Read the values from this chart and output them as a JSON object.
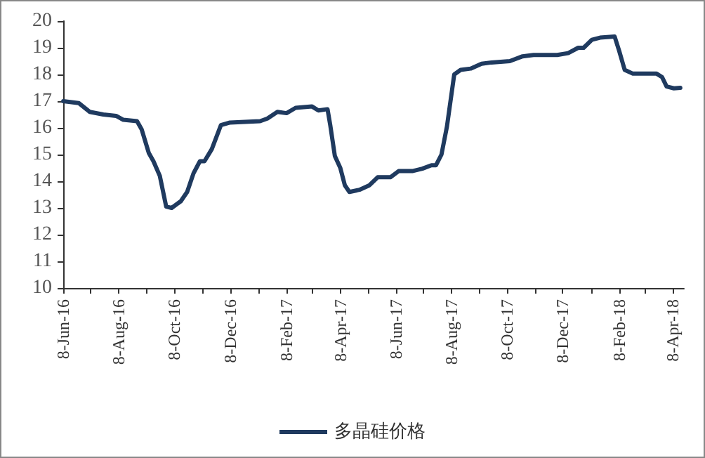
{
  "chart_data": {
    "type": "line",
    "x": [
      "2016-06-08",
      "2016-06-25",
      "2016-07-07",
      "2016-07-22",
      "2016-08-05",
      "2016-08-13",
      "2016-08-28",
      "2016-09-02",
      "2016-09-10",
      "2016-09-15",
      "2016-09-22",
      "2016-09-29",
      "2016-10-05",
      "2016-10-15",
      "2016-10-22",
      "2016-10-29",
      "2016-11-05",
      "2016-11-10",
      "2016-11-18",
      "2016-11-28",
      "2016-12-08",
      "2017-01-10",
      "2017-01-18",
      "2017-01-29",
      "2017-02-08",
      "2017-02-18",
      "2017-03-08",
      "2017-03-15",
      "2017-03-25",
      "2017-03-28",
      "2017-04-02",
      "2017-04-08",
      "2017-04-13",
      "2017-04-18",
      "2017-04-29",
      "2017-05-10",
      "2017-05-19",
      "2017-06-02",
      "2017-06-11",
      "2017-06-26",
      "2017-07-07",
      "2017-07-17",
      "2017-07-22",
      "2017-07-28",
      "2017-08-03",
      "2017-08-11",
      "2017-08-18",
      "2017-08-29",
      "2017-09-10",
      "2017-09-21",
      "2017-10-11",
      "2017-10-25",
      "2017-11-06",
      "2017-12-02",
      "2017-12-14",
      "2017-12-25",
      "2017-12-31",
      "2018-01-09",
      "2018-01-18",
      "2018-02-03",
      "2018-02-08",
      "2018-02-14",
      "2018-02-23",
      "2018-03-21",
      "2018-03-27",
      "2018-04-01",
      "2018-04-09",
      "2018-04-16"
    ],
    "series": [
      {
        "name": "多晶硅价格",
        "color": "#1f3a5f",
        "values": [
          17.0,
          16.93,
          16.6,
          16.5,
          16.45,
          16.3,
          16.25,
          15.95,
          15.05,
          14.75,
          14.2,
          13.05,
          13.0,
          13.25,
          13.6,
          14.3,
          14.75,
          14.75,
          15.2,
          16.1,
          16.2,
          16.25,
          16.35,
          16.6,
          16.55,
          16.75,
          16.8,
          16.65,
          16.7,
          16.1,
          14.95,
          14.5,
          13.85,
          13.6,
          13.68,
          13.85,
          14.15,
          14.15,
          14.38,
          14.38,
          14.47,
          14.6,
          14.6,
          15.0,
          16.05,
          18.0,
          18.17,
          18.22,
          18.4,
          18.45,
          18.5,
          18.68,
          18.73,
          18.73,
          18.8,
          19.0,
          19.0,
          19.3,
          19.38,
          19.42,
          18.88,
          18.17,
          18.03,
          18.03,
          17.9,
          17.55,
          17.48,
          17.5
        ]
      }
    ],
    "xlim": [
      "2016-06-08",
      "2018-04-20"
    ],
    "xticks": [
      {
        "value": "2016-06-08",
        "label": "8-Jun-16"
      },
      {
        "value": "2016-07-08",
        "label": null
      },
      {
        "value": "2016-08-08",
        "label": "8-Aug-16"
      },
      {
        "value": "2016-09-08",
        "label": null
      },
      {
        "value": "2016-10-08",
        "label": "8-Oct-16"
      },
      {
        "value": "2016-11-08",
        "label": null
      },
      {
        "value": "2016-12-08",
        "label": "8-Dec-16"
      },
      {
        "value": "2017-01-08",
        "label": null
      },
      {
        "value": "2017-02-08",
        "label": "8-Feb-17"
      },
      {
        "value": "2017-03-08",
        "label": null
      },
      {
        "value": "2017-04-08",
        "label": "8-Apr-17"
      },
      {
        "value": "2017-05-08",
        "label": null
      },
      {
        "value": "2017-06-08",
        "label": "8-Jun-17"
      },
      {
        "value": "2017-07-08",
        "label": null
      },
      {
        "value": "2017-08-08",
        "label": "8-Aug-17"
      },
      {
        "value": "2017-09-08",
        "label": null
      },
      {
        "value": "2017-10-08",
        "label": "8-Oct-17"
      },
      {
        "value": "2017-11-08",
        "label": null
      },
      {
        "value": "2017-12-08",
        "label": "8-Dec-17"
      },
      {
        "value": "2018-01-08",
        "label": null
      },
      {
        "value": "2018-02-08",
        "label": "8-Feb-18"
      },
      {
        "value": "2018-03-08",
        "label": null
      },
      {
        "value": "2018-04-08",
        "label": "8-Apr-18"
      }
    ],
    "ylim": [
      10,
      20
    ],
    "yticks": [
      10,
      11,
      12,
      13,
      14,
      15,
      16,
      17,
      18,
      19,
      20
    ],
    "grid": false,
    "legend": "bottom",
    "marker": "none",
    "line_style": "solid"
  }
}
